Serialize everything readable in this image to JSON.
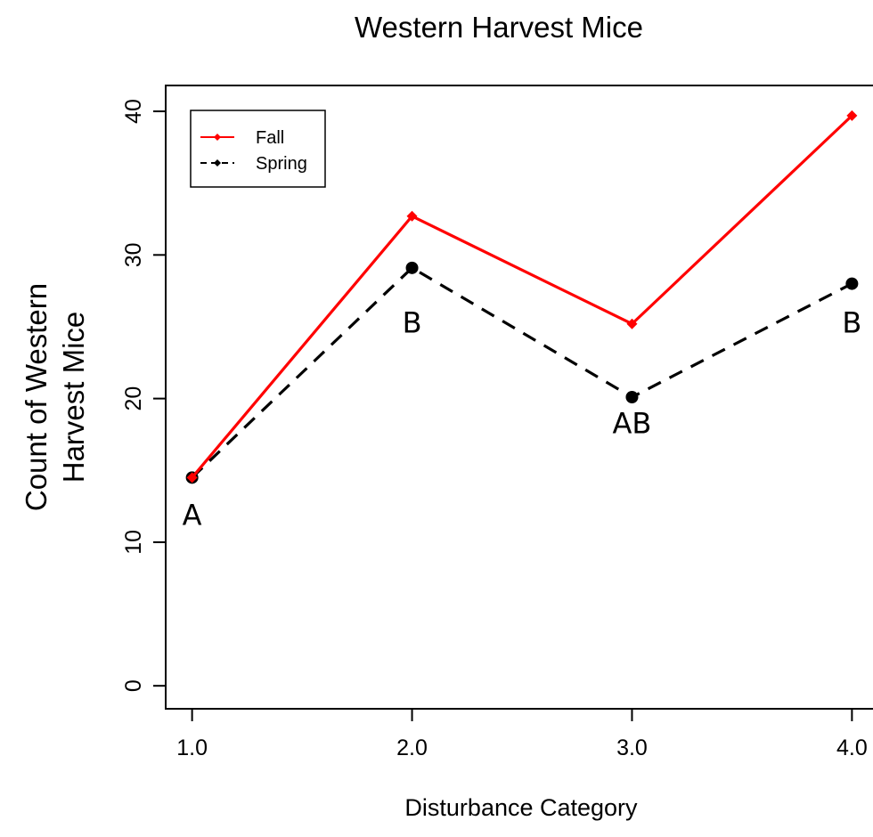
{
  "chart_data": {
    "type": "line",
    "title": "Western Harvest Mice",
    "xlabel": "Disturbance Category",
    "ylabel": [
      "Count of Western",
      "Harvest Mice"
    ],
    "x": [
      1,
      2,
      3,
      4
    ],
    "x_tick_labels": [
      "1.0",
      "2.0",
      "3.0",
      "4.0"
    ],
    "y_ticks": [
      0,
      10,
      20,
      30,
      40
    ],
    "y_tick_labels": [
      "0",
      "10",
      "20",
      "30",
      "40"
    ],
    "xlim": [
      0.88,
      4.12
    ],
    "ylim": [
      -1.6,
      41.8
    ],
    "series": [
      {
        "name": "Fall",
        "values": [
          14.5,
          32.7,
          25.2,
          39.7
        ],
        "color": "#ff0000",
        "line_style": "solid",
        "marker": "diamond"
      },
      {
        "name": "Spring",
        "values": [
          14.5,
          29.1,
          20.1,
          28.0
        ],
        "color": "#000000",
        "line_style": "dashed",
        "marker": "circle"
      }
    ],
    "annotations": [
      {
        "text": "A",
        "x": 1,
        "y": 11.2
      },
      {
        "text": "B",
        "x": 2,
        "y": 24.6
      },
      {
        "text": "AB",
        "x": 3,
        "y": 17.6
      },
      {
        "text": "B",
        "x": 4,
        "y": 24.6
      }
    ],
    "legend": {
      "position": "top-left"
    },
    "grid": false
  }
}
